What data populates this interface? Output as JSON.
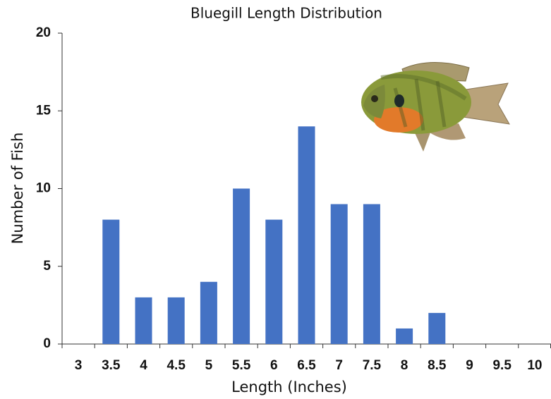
{
  "chart_data": {
    "type": "bar",
    "title": "Bluegill Length Distribution",
    "x_label": "Length (Inches)",
    "y_label": "Number of Fish",
    "categories": [
      "3",
      "3.5",
      "4",
      "4.5",
      "5",
      "5.5",
      "6",
      "6.5",
      "7",
      "7.5",
      "8",
      "8.5",
      "9",
      "9.5",
      "10"
    ],
    "values": [
      0,
      8,
      3,
      3,
      4,
      10,
      8,
      14,
      9,
      9,
      1,
      2,
      0,
      0,
      0
    ],
    "color": "#4472c4",
    "ylim": [
      0,
      20
    ],
    "yticks": [
      0,
      5,
      10,
      15,
      20
    ],
    "grid": false
  }
}
